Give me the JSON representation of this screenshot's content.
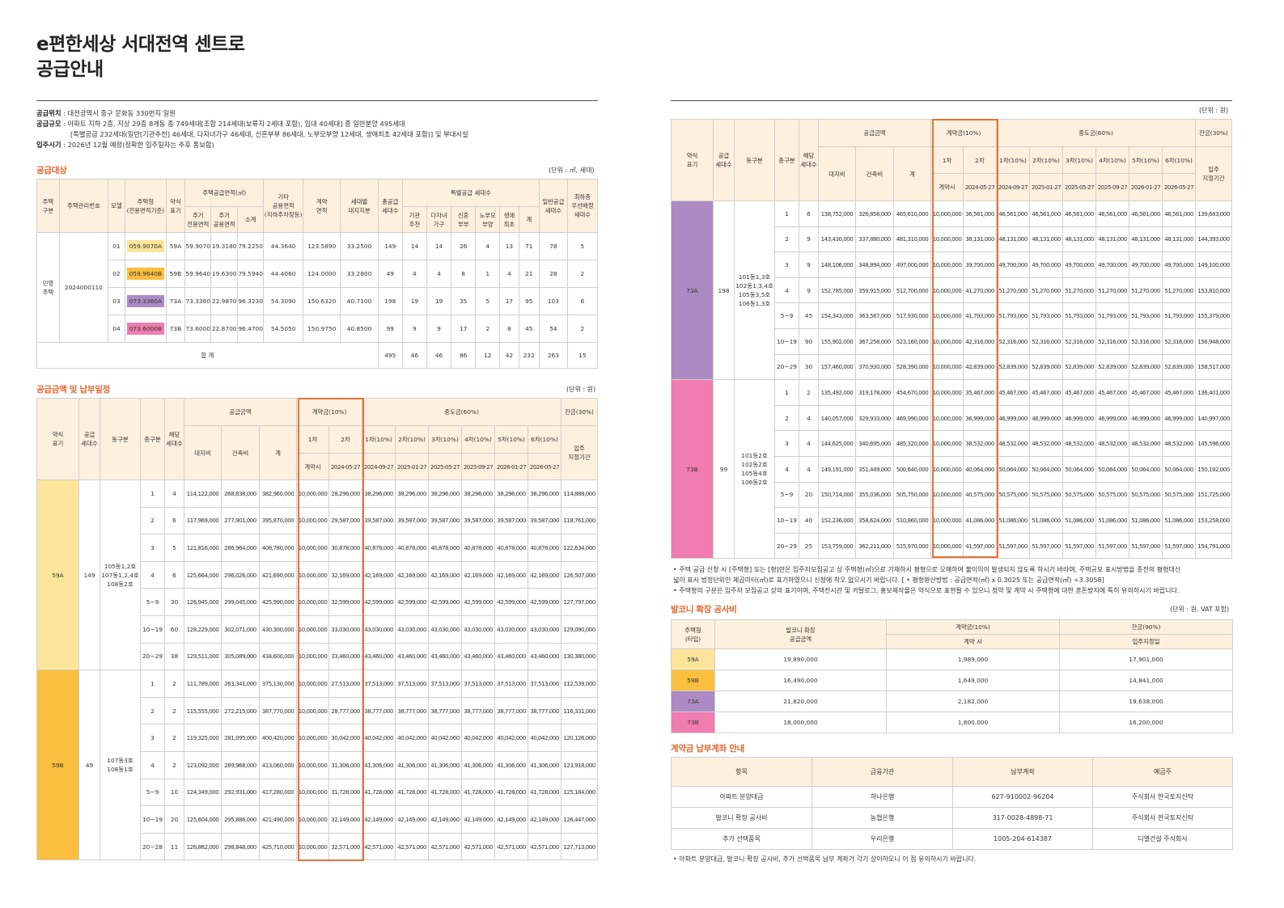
{
  "title_line1": "e편한세상 서대전역 센트로",
  "title_line2": "공급안내",
  "info": [
    {
      "key": "공급위치",
      "text": " : 대전광역시 중구 문화동 330번지 일원"
    },
    {
      "key": "공급규모",
      "text": " : 아파트 지하 2층, 지상 29층 8개동 총 749세대[조합 214세대(보류지 2세대 포함), 임대 40세대] 중 일반분양 495세대"
    },
    {
      "key": "",
      "text": "[특별공급 232세대(일반[기관추천] 46세대, 다자녀가구 46세대, 신혼부부 86세대, 노부모부양 12세대, 생애최초 42세대 포함)] 및 부대시설"
    },
    {
      "key": "입주시기",
      "text": " : 2026년 12월 예정(정확한 입주일자는 추후 통보함)"
    }
  ],
  "colors": {
    "59A": "#fce59a",
    "59B": "#fbbe3e",
    "73A": "#ad8ac4",
    "73B": "#f07cb0",
    "accent": "#e0662c"
  },
  "supply": {
    "section": "공급대상",
    "unit": "(단위 : ㎡, 세대)",
    "headers": {
      "house_type": "주택\n구분",
      "mgmt_no": "주택관리번호",
      "model": "모델",
      "unit_type": "주택형\n(전용면적기준)",
      "abbr": "약식\n표기",
      "area": "주택공급면적(㎡)",
      "area_excl": "주거\n전용면적",
      "area_common": "주거\n공용면적",
      "area_sub": "소계",
      "other": "기타\n공용면적\n(지하주차장등)",
      "contract_area": "계약\n면적",
      "land": "세대별\n대지지분",
      "total_units": "총공급\n세대수",
      "special": "특별공급 세대수",
      "sp1": "기관\n추천",
      "sp2": "다자녀\n가구",
      "sp3": "신혼\n부부",
      "sp4": "노부모\n부양",
      "sp5": "생애\n최초",
      "sp_sum": "계",
      "general": "일반공급\n세대수",
      "priority": "최하층\n우선배정\n세대수"
    },
    "house_type": "민영\n주택",
    "mgmt_no": "2024000110",
    "rows": [
      {
        "model": "01",
        "type": "059.9070A",
        "abbr": "59A",
        "excl": "59.9070",
        "common": "19.3180",
        "sub": "79.2250",
        "other": "44.3640",
        "contract": "123.5890",
        "land": "33.2500",
        "total": "149",
        "sp": [
          "14",
          "14",
          "26",
          "4",
          "13",
          "71"
        ],
        "general": "78",
        "priority": "5",
        "color": "59A"
      },
      {
        "model": "02",
        "type": "059.9640B",
        "abbr": "59B",
        "excl": "59.9640",
        "common": "19.6300",
        "sub": "79.5940",
        "other": "44.4060",
        "contract": "124.0000",
        "land": "33.2800",
        "total": "49",
        "sp": [
          "4",
          "4",
          "8",
          "1",
          "4",
          "21"
        ],
        "general": "28",
        "priority": "2",
        "color": "59B"
      },
      {
        "model": "03",
        "type": "073.3360A",
        "abbr": "73A",
        "excl": "73.3360",
        "common": "22.9870",
        "sub": "96.3230",
        "other": "54.3090",
        "contract": "150.6320",
        "land": "40.7100",
        "total": "198",
        "sp": [
          "19",
          "19",
          "35",
          "5",
          "17",
          "95"
        ],
        "general": "103",
        "priority": "6",
        "color": "73A"
      },
      {
        "model": "04",
        "type": "073.6000B",
        "abbr": "73B",
        "excl": "73.6000",
        "common": "22.8700",
        "sub": "96.4700",
        "other": "54.5050",
        "contract": "150.9750",
        "land": "40.8500",
        "total": "99",
        "sp": [
          "9",
          "9",
          "17",
          "2",
          "8",
          "45"
        ],
        "general": "54",
        "priority": "2",
        "color": "73B"
      }
    ],
    "total_label": "합  계",
    "totals": [
      "495",
      "46",
      "46",
      "86",
      "12",
      "42",
      "232",
      "263",
      "15"
    ]
  },
  "price": {
    "section": "공급금액 및 납부일정",
    "unit": "(단위 : 원)",
    "unit_right": "(단위 : 원)",
    "headers": {
      "abbr": "약식\n표기",
      "units": "공급\n세대수",
      "dong": "동구분",
      "floor": "층구분",
      "count": "해당\n세대수",
      "amount": "공급금액",
      "land": "대지비",
      "build": "건축비",
      "sum": "계",
      "contract": "계약금(10%)",
      "c1": "1차",
      "c2": "2차",
      "c1d": "계약시",
      "c2d": "2024-05-27",
      "mid": "중도금(60%)",
      "m": [
        "1차(10%)",
        "2차(10%)",
        "3차(10%)",
        "4차(10%)",
        "5차(10%)",
        "6차(10%)"
      ],
      "md": [
        "2024-09-27",
        "2025-01-27",
        "2025-05-27",
        "2025-09-27",
        "2026-01-27",
        "2026-05-27"
      ],
      "bal": "잔금(30%)",
      "bald": "입주\n지정기간"
    },
    "groups": [
      {
        "abbr": "59A",
        "units": "149",
        "dong": "105동1,2호\n107동1,2,4호\n108동2호",
        "color": "59A",
        "rows": [
          [
            "1",
            "4",
            "114,122,000",
            "268,838,000",
            "382,960,000",
            "10,000,000",
            "28,296,000",
            "38,296,000",
            "114,888,000"
          ],
          [
            "2",
            "6",
            "117,969,000",
            "277,901,000",
            "395,870,000",
            "10,000,000",
            "29,587,000",
            "39,587,000",
            "118,761,000"
          ],
          [
            "3",
            "5",
            "121,816,000",
            "286,964,000",
            "408,780,000",
            "10,000,000",
            "30,878,000",
            "40,878,000",
            "122,634,000"
          ],
          [
            "4",
            "6",
            "125,664,000",
            "296,026,000",
            "421,690,000",
            "10,000,000",
            "32,169,000",
            "42,169,000",
            "126,507,000"
          ],
          [
            "5~9",
            "30",
            "126,945,000",
            "299,045,000",
            "425,990,000",
            "10,000,000",
            "32,599,000",
            "42,599,000",
            "127,797,000"
          ],
          [
            "10~19",
            "60",
            "128,229,000",
            "302,071,000",
            "430,300,000",
            "10,000,000",
            "33,030,000",
            "43,030,000",
            "129,090,000"
          ],
          [
            "20~29",
            "38",
            "129,511,000",
            "305,089,000",
            "434,600,000",
            "10,000,000",
            "33,460,000",
            "43,460,000",
            "130,380,000"
          ]
        ]
      },
      {
        "abbr": "59B",
        "units": "49",
        "dong": "107동3호\n108동1호",
        "color": "59B",
        "rows": [
          [
            "1",
            "2",
            "111,789,000",
            "263,341,000",
            "375,130,000",
            "10,000,000",
            "27,513,000",
            "37,513,000",
            "112,539,000"
          ],
          [
            "2",
            "2",
            "115,555,000",
            "272,215,000",
            "387,770,000",
            "10,000,000",
            "28,777,000",
            "38,777,000",
            "116,331,000"
          ],
          [
            "3",
            "2",
            "119,325,000",
            "281,095,000",
            "400,420,000",
            "10,000,000",
            "30,042,000",
            "40,042,000",
            "120,126,000"
          ],
          [
            "4",
            "2",
            "123,092,000",
            "289,968,000",
            "413,060,000",
            "10,000,000",
            "31,306,000",
            "41,306,000",
            "123,918,000"
          ],
          [
            "5~9",
            "10",
            "124,349,000",
            "292,931,000",
            "417,280,000",
            "10,000,000",
            "31,728,000",
            "41,728,000",
            "125,184,000"
          ],
          [
            "10~19",
            "20",
            "125,604,000",
            "295,886,000",
            "421,490,000",
            "10,000,000",
            "32,149,000",
            "42,149,000",
            "126,447,000"
          ],
          [
            "20~28",
            "11",
            "126,862,000",
            "298,848,000",
            "425,710,000",
            "10,000,000",
            "32,571,000",
            "42,571,000",
            "127,713,000"
          ]
        ]
      },
      {
        "abbr": "73A",
        "units": "198",
        "dong": "101동1,3호\n102동1,3,4호\n105동3,5호\n106동1,3호",
        "color": "73A",
        "rows": [
          [
            "1",
            "6",
            "138,752,000",
            "326,858,000",
            "465,610,000",
            "10,000,000",
            "36,561,000",
            "46,561,000",
            "139,683,000"
          ],
          [
            "2",
            "9",
            "143,430,000",
            "337,880,000",
            "481,310,000",
            "10,000,000",
            "38,131,000",
            "48,131,000",
            "144,393,000"
          ],
          [
            "3",
            "9",
            "148,106,000",
            "348,894,000",
            "497,000,000",
            "10,000,000",
            "39,700,000",
            "49,700,000",
            "149,100,000"
          ],
          [
            "4",
            "9",
            "152,785,000",
            "359,915,000",
            "512,700,000",
            "10,000,000",
            "41,270,000",
            "51,270,000",
            "153,810,000"
          ],
          [
            "5~9",
            "45",
            "154,343,000",
            "363,587,000",
            "517,930,000",
            "10,000,000",
            "41,793,000",
            "51,793,000",
            "155,379,000"
          ],
          [
            "10~19",
            "90",
            "155,902,000",
            "367,258,000",
            "523,160,000",
            "10,000,000",
            "42,316,000",
            "52,316,000",
            "156,948,000"
          ],
          [
            "20~29",
            "30",
            "157,460,000",
            "370,930,000",
            "528,390,000",
            "10,000,000",
            "42,839,000",
            "52,839,000",
            "158,517,000"
          ]
        ]
      },
      {
        "abbr": "73B",
        "units": "99",
        "dong": "101동2호\n102동2호\n105동4호\n106동2호",
        "color": "73B",
        "rows": [
          [
            "1",
            "2",
            "135,492,000",
            "319,178,000",
            "454,670,000",
            "10,000,000",
            "35,467,000",
            "45,467,000",
            "136,401,000"
          ],
          [
            "2",
            "4",
            "140,057,000",
            "329,933,000",
            "469,990,000",
            "10,000,000",
            "36,999,000",
            "46,999,000",
            "140,997,000"
          ],
          [
            "3",
            "4",
            "144,625,000",
            "340,695,000",
            "485,320,000",
            "10,000,000",
            "38,532,000",
            "48,532,000",
            "145,596,000"
          ],
          [
            "4",
            "4",
            "149,191,000",
            "351,449,000",
            "500,640,000",
            "10,000,000",
            "40,064,000",
            "50,064,000",
            "150,192,000"
          ],
          [
            "5~9",
            "20",
            "150,714,000",
            "355,036,000",
            "505,750,000",
            "10,000,000",
            "40,575,000",
            "50,575,000",
            "151,725,000"
          ],
          [
            "10~19",
            "40",
            "152,236,000",
            "358,624,000",
            "510,860,000",
            "10,000,000",
            "41,086,000",
            "51,086,000",
            "153,258,000"
          ],
          [
            "20~29",
            "25",
            "153,759,000",
            "362,211,000",
            "515,970,000",
            "10,000,000",
            "41,597,000",
            "51,597,000",
            "154,791,000"
          ]
        ]
      }
    ]
  },
  "notes1": [
    "•  주택 공급 신청 시 [주택형] 또는 [형]란은 입주자모집공고 상 주택형(㎡)으로 기재하시 평형으로 오해하여 불이익이 발생되지 않도록 하시기 바라며, 주택규모 표시방법을 종전의 평형대신",
    "    넓이 표시 법정단위인 제곱미터(㎡)로 표기하였으니 신청에 착오 없으시기 바랍니다. [ •  평형환산방법 : 공급면적(㎡) x 0.3025 또는 공급면적(㎡) ÷3.3058]",
    "•  주택형의 구분은 입주자 모집공고 상의 표기이며, 주택전시관 및 카탈로그, 홍보제작물은 약식으로 표현될 수 있으니 청약 및 계약 시 주택형에 대한 혼돈방지에 특히 유의하시기 바랍니다."
  ],
  "balcony": {
    "section": "발코니 확장 공사비",
    "unit": "(단위 : 원, VAT 포함)",
    "headers": {
      "type": "주택형\n(타입)",
      "amount": "발코니 확장\n공급금액",
      "contract": "계약금(10%)",
      "contract_sub": "계약 시",
      "balance": "잔금(90%)",
      "balance_sub": "입주지정일"
    },
    "rows": [
      {
        "type": "59A",
        "amount": "19,890,000",
        "contract": "1,989,000",
        "balance": "17,901,000",
        "color": "59A"
      },
      {
        "type": "59B",
        "amount": "16,490,000",
        "contract": "1,649,000",
        "balance": "14,841,000",
        "color": "59B"
      },
      {
        "type": "73A",
        "amount": "21,820,000",
        "contract": "2,182,000",
        "balance": "19,638,000",
        "color": "73A"
      },
      {
        "type": "73B",
        "amount": "18,000,000",
        "contract": "1,800,000",
        "balance": "16,200,000",
        "color": "73B"
      }
    ]
  },
  "account": {
    "section": "계약금 납부계좌 안내",
    "headers": [
      "항목",
      "금융기관",
      "납부계좌",
      "예금주"
    ],
    "rows": [
      [
        "아파트 분양대금",
        "하나은행",
        "627-910002-96204",
        "주식회사 한국토지신탁"
      ],
      [
        "발코니 확장 공사비",
        "농협은행",
        "317-0028-4898-71",
        "주식회사 한국토지신탁"
      ],
      [
        "추가 선택품목",
        "우리은행",
        "1005-204-614387",
        "디엘건설 주식회사"
      ]
    ],
    "note": "•  아파트 분양대금, 발코니 확장 공사비, 추가 선택품목 납부 계좌가 각기 상이하오니 이 점 유의하시기 바랍니다."
  }
}
